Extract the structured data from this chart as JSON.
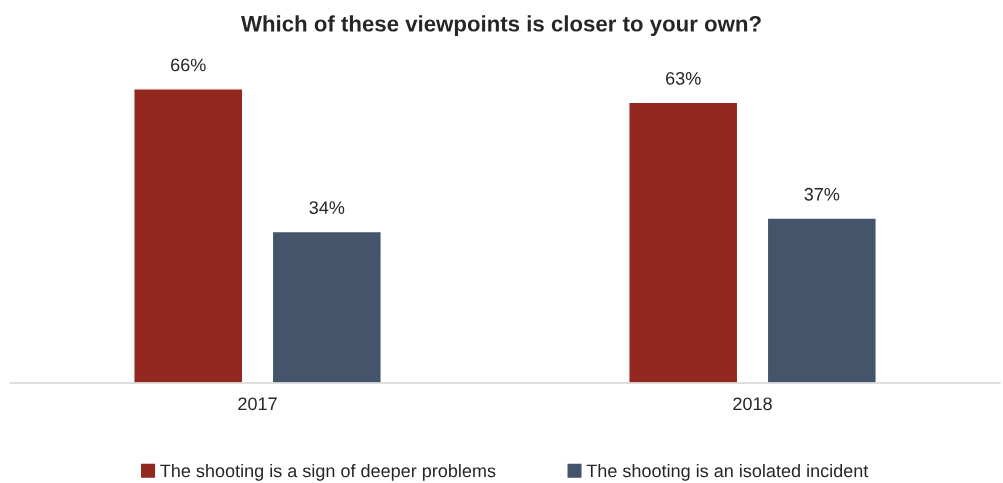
{
  "chart_data": {
    "type": "bar",
    "title": "Which of these viewpoints is closer to your own?",
    "categories": [
      "2017",
      "2018"
    ],
    "series": [
      {
        "name": "The shooting is a sign of deeper problems",
        "color": "#922820",
        "values": [
          66,
          63
        ],
        "value_labels": [
          "66%",
          "63%"
        ]
      },
      {
        "name": "The shooting is an isolated incident",
        "color": "#44546a",
        "values": [
          34,
          37
        ],
        "value_labels": [
          "34%",
          "37%"
        ]
      }
    ],
    "legend": "bottom",
    "grid": false
  }
}
